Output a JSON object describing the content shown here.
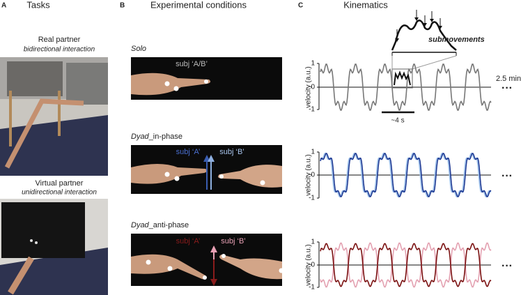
{
  "panels": {
    "a": {
      "letter": "A",
      "title": "Tasks",
      "real": {
        "title": "Real partner",
        "subtitle": "bidirectional interaction"
      },
      "virtual": {
        "title": "Virtual partner",
        "subtitle": "unidirectional interaction"
      }
    },
    "b": {
      "letter": "B",
      "title": "Experimental conditions",
      "solo": {
        "label": "Solo",
        "subject": "subj ‘A/B’"
      },
      "in_phase": {
        "label_italic": "Dyad",
        "label_rest": "_in-phase",
        "subject_a": "subj ‘A’",
        "subject_b": "subj ‘B’"
      },
      "anti_phase": {
        "label_italic": "Dyad",
        "label_rest": "_anti-phase",
        "subject_a": "subj ‘A’",
        "subject_b": "subj ‘B’"
      }
    },
    "c": {
      "letter": "C",
      "title": "Kinematics",
      "annotation": "submovements",
      "y_label": "velocity (a.u.)",
      "y_ticks": [
        "1",
        "0",
        "-1"
      ],
      "duration": "2.5 min",
      "scale_bar": "~4 s",
      "ellipsis": "···"
    }
  }
}
